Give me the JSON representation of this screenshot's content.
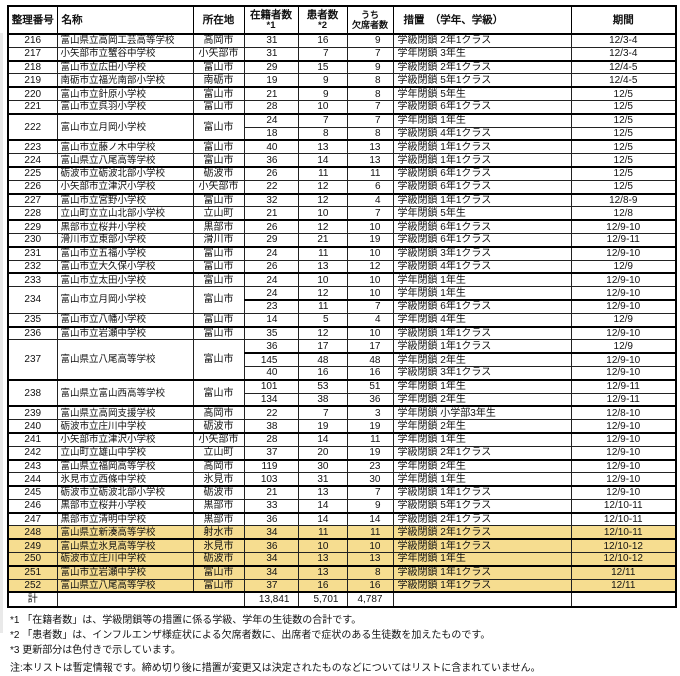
{
  "colors": {
    "highlight": "#f6dd90",
    "border": "#000000"
  },
  "columns": [
    {
      "label": "整理番号"
    },
    {
      "label": "名称"
    },
    {
      "label": "所在地"
    },
    {
      "label": "在籍者数",
      "sub": "*1"
    },
    {
      "label": "患者数",
      "sub": "*2"
    },
    {
      "label": "うち",
      "sub": "欠席者数"
    },
    {
      "label": "措置　（学年、学級）"
    },
    {
      "label": "期間"
    }
  ],
  "entries": [
    {
      "no": "216",
      "name": "富山県立高岡工芸高等学校",
      "location": "高岡市",
      "rows": [
        [
          "31",
          "16",
          "9",
          "学級閉鎖 2年1クラス",
          "12/3-4"
        ]
      ]
    },
    {
      "no": "217",
      "name": "小矢部市立蟹谷中学校",
      "location": "小矢部市",
      "rows": [
        [
          "31",
          "7",
          "7",
          "学年閉鎖 3年生",
          "12/3-4"
        ]
      ]
    },
    {
      "no": "218",
      "name": "富山市立広田小学校",
      "location": "富山市",
      "rows": [
        [
          "29",
          "15",
          "9",
          "学級閉鎖 2年1クラス",
          "12/4-5"
        ]
      ]
    },
    {
      "no": "219",
      "name": "南砺市立福光南部小学校",
      "location": "南砺市",
      "rows": [
        [
          "19",
          "9",
          "8",
          "学級閉鎖 5年1クラス",
          "12/4-5"
        ]
      ]
    },
    {
      "no": "220",
      "name": "富山市立針原小学校",
      "location": "富山市",
      "rows": [
        [
          "21",
          "9",
          "8",
          "学年閉鎖 5年生",
          "12/5"
        ]
      ]
    },
    {
      "no": "221",
      "name": "富山市立呉羽小学校",
      "location": "富山市",
      "rows": [
        [
          "28",
          "10",
          "7",
          "学級閉鎖 6年1クラス",
          "12/5"
        ]
      ]
    },
    {
      "no": "222",
      "name": "富山市立月岡小学校",
      "location": "富山市",
      "rows": [
        [
          "24",
          "7",
          "7",
          "学年閉鎖 1年生",
          "12/5"
        ],
        [
          "18",
          "8",
          "8",
          "学級閉鎖 4年1クラス",
          "12/5"
        ]
      ]
    },
    {
      "no": "223",
      "name": "富山市立藤ノ木中学校",
      "location": "富山市",
      "rows": [
        [
          "40",
          "13",
          "13",
          "学級閉鎖 1年1クラス",
          "12/5"
        ]
      ]
    },
    {
      "no": "224",
      "name": "富山県立八尾高等学校",
      "location": "富山市",
      "rows": [
        [
          "36",
          "14",
          "13",
          "学級閉鎖 1年1クラス",
          "12/5"
        ]
      ]
    },
    {
      "no": "225",
      "name": "砺波市立砺波北部小学校",
      "location": "砺波市",
      "rows": [
        [
          "26",
          "11",
          "11",
          "学級閉鎖 6年1クラス",
          "12/5"
        ]
      ]
    },
    {
      "no": "226",
      "name": "小矢部市立津沢小学校",
      "location": "小矢部市",
      "rows": [
        [
          "22",
          "12",
          "6",
          "学級閉鎖 6年1クラス",
          "12/5"
        ]
      ]
    },
    {
      "no": "227",
      "name": "富山市立宮野小学校",
      "location": "富山市",
      "rows": [
        [
          "32",
          "12",
          "4",
          "学級閉鎖 1年1クラス",
          "12/8-9"
        ]
      ]
    },
    {
      "no": "228",
      "name": "立山町立立山北部小学校",
      "location": "立山町",
      "rows": [
        [
          "21",
          "10",
          "7",
          "学年閉鎖 5年生",
          "12/8"
        ]
      ]
    },
    {
      "no": "229",
      "name": "黒部市立桜井小学校",
      "location": "黒部市",
      "rows": [
        [
          "26",
          "12",
          "10",
          "学級閉鎖 6年1クラス",
          "12/9-10"
        ]
      ]
    },
    {
      "no": "230",
      "name": "滑川市立東部小学校",
      "location": "滑川市",
      "rows": [
        [
          "29",
          "21",
          "19",
          "学級閉鎖 6年1クラス",
          "12/9-11"
        ]
      ]
    },
    {
      "no": "231",
      "name": "富山市立五福小学校",
      "location": "富山市",
      "rows": [
        [
          "24",
          "11",
          "10",
          "学級閉鎖 3年1クラス",
          "12/9-10"
        ]
      ]
    },
    {
      "no": "232",
      "name": "富山市立大久保小学校",
      "location": "富山市",
      "rows": [
        [
          "26",
          "13",
          "12",
          "学級閉鎖 4年1クラス",
          "12/9"
        ]
      ]
    },
    {
      "no": "233",
      "name": "富山市立太田小学校",
      "location": "富山市",
      "rows": [
        [
          "24",
          "10",
          "10",
          "学年閉鎖 1年生",
          "12/9-10"
        ]
      ]
    },
    {
      "no": "234",
      "name": "富山市立月岡小学校",
      "location": "富山市",
      "rows": [
        [
          "24",
          "12",
          "10",
          "学年閉鎖 1年生",
          "12/9-10"
        ],
        [
          "23",
          "11",
          "7",
          "学級閉鎖 6年1クラス",
          "12/9-10"
        ]
      ]
    },
    {
      "no": "235",
      "name": "富山市立八幡小学校",
      "location": "富山市",
      "rows": [
        [
          "14",
          "5",
          "4",
          "学年閉鎖 4年生",
          "12/9"
        ]
      ]
    },
    {
      "no": "236",
      "name": "富山市立岩瀬中学校",
      "location": "富山市",
      "rows": [
        [
          "35",
          "12",
          "10",
          "学級閉鎖 1年1クラス",
          "12/9-10"
        ]
      ]
    },
    {
      "no": "237",
      "name": "富山県立八尾高等学校",
      "location": "富山市",
      "rows": [
        [
          "36",
          "17",
          "17",
          "学級閉鎖 1年1クラス",
          "12/9"
        ],
        [
          "145",
          "48",
          "48",
          "学年閉鎖 2年生",
          "12/9-10"
        ],
        [
          "40",
          "16",
          "16",
          "学級閉鎖 3年1クラス",
          "12/9-10"
        ]
      ]
    },
    {
      "no": "238",
      "name": "富山県立富山西高等学校",
      "location": "富山市",
      "rows": [
        [
          "101",
          "53",
          "51",
          "学年閉鎖 1年生",
          "12/9-11"
        ],
        [
          "134",
          "38",
          "36",
          "学年閉鎖 2年生",
          "12/9-11"
        ]
      ]
    },
    {
      "no": "239",
      "name": "富山県立高岡支援学校",
      "location": "高岡市",
      "rows": [
        [
          "22",
          "7",
          "3",
          "学年閉鎖 小学部3年生",
          "12/8-10"
        ]
      ]
    },
    {
      "no": "240",
      "name": "砺波市立庄川中学校",
      "location": "砺波市",
      "rows": [
        [
          "38",
          "19",
          "19",
          "学年閉鎖 2年生",
          "12/9-10"
        ]
      ]
    },
    {
      "no": "241",
      "name": "小矢部市立津沢小学校",
      "location": "小矢部市",
      "rows": [
        [
          "28",
          "14",
          "11",
          "学年閉鎖 1年生",
          "12/9-10"
        ]
      ]
    },
    {
      "no": "242",
      "name": "立山町立雄山中学校",
      "location": "立山町",
      "rows": [
        [
          "37",
          "20",
          "19",
          "学級閉鎖 2年1クラス",
          "12/9-10"
        ]
      ]
    },
    {
      "no": "243",
      "name": "富山県立福岡高等学校",
      "location": "高岡市",
      "rows": [
        [
          "119",
          "30",
          "23",
          "学年閉鎖 2年生",
          "12/9-10"
        ]
      ]
    },
    {
      "no": "244",
      "name": "氷見市立西條中学校",
      "location": "氷見市",
      "rows": [
        [
          "103",
          "31",
          "30",
          "学年閉鎖 1年生",
          "12/9-10"
        ]
      ]
    },
    {
      "no": "245",
      "name": "砺波市立砺波北部小学校",
      "location": "砺波市",
      "rows": [
        [
          "21",
          "13",
          "7",
          "学級閉鎖 1年1クラス",
          "12/9-10"
        ]
      ]
    },
    {
      "no": "246",
      "name": "黒部市立桜井小学校",
      "location": "黒部市",
      "rows": [
        [
          "33",
          "14",
          "9",
          "学級閉鎖 5年1クラス",
          "12/10-11"
        ]
      ]
    },
    {
      "no": "247",
      "name": "黒部市立清明中学校",
      "location": "黒部市",
      "rows": [
        [
          "36",
          "14",
          "14",
          "学級閉鎖 2年1クラス",
          "12/10-11"
        ]
      ]
    },
    {
      "no": "248",
      "name": "富山県立新湊高等学校",
      "location": "射水市",
      "highlight": true,
      "rows": [
        [
          "34",
          "11",
          "11",
          "学級閉鎖 2年1クラス",
          "12/10-11"
        ]
      ]
    },
    {
      "no": "249",
      "name": "富山県立氷見高等学校",
      "location": "氷見市",
      "highlight": true,
      "rows": [
        [
          "36",
          "10",
          "10",
          "学級閉鎖 1年1クラス",
          "12/10-12"
        ]
      ]
    },
    {
      "no": "250",
      "name": "砺波市立庄川中学校",
      "location": "砺波市",
      "highlight": true,
      "rows": [
        [
          "34",
          "13",
          "13",
          "学年閉鎖 1年生",
          "12/10-12"
        ]
      ]
    },
    {
      "no": "251",
      "name": "富山市立岩瀬中学校",
      "location": "富山市",
      "highlight": true,
      "rows": [
        [
          "34",
          "13",
          "8",
          "学級閉鎖 1年1クラス",
          "12/11"
        ]
      ]
    },
    {
      "no": "252",
      "name": "富山県立八尾高等学校",
      "location": "富山市",
      "highlight": true,
      "rows": [
        [
          "37",
          "16",
          "16",
          "学級閉鎖 1年1クラス",
          "12/11"
        ]
      ]
    }
  ],
  "total": {
    "label": "計",
    "enrolled": "13,841",
    "patients": "5,701",
    "absent": "4,787"
  },
  "footnotes": [
    "*1 「在籍者数」は、学級閉鎖等の措置に係る学級、学年の生徒数の合計です。",
    "*2 「患者数」は、インフルエンザ様症状による欠席者数に、出席者で症状のある生徒数を加えたものです。",
    "*3 更新部分は色付きで示しています。",
    "注:本リストは暫定情報です。締め切り後に措置が変更又は決定されたものなどについてはリストに含まれていません。"
  ]
}
